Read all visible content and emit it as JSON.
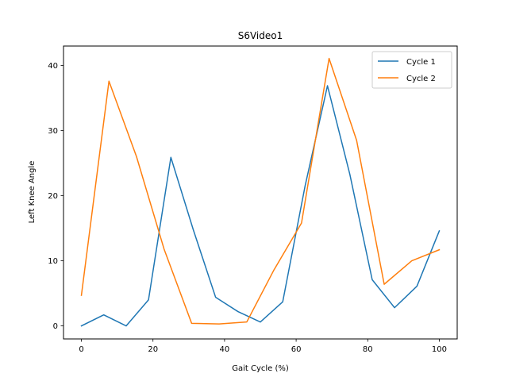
{
  "chart_data": {
    "type": "line",
    "title": "S6Video1",
    "xlabel": "Gait Cycle (%)",
    "ylabel": "Left Knee Angle",
    "xlim": [
      -5,
      105
    ],
    "ylim": [
      -2,
      43
    ],
    "xticks": [
      0,
      20,
      40,
      60,
      80,
      100
    ],
    "yticks": [
      0,
      10,
      20,
      30,
      40
    ],
    "grid": false,
    "legend_position": "top-right",
    "series": [
      {
        "name": "Cycle 1",
        "color": "#1f77b4",
        "x": [
          0,
          6.25,
          12.5,
          18.75,
          25,
          31.25,
          37.5,
          43.75,
          50,
          56.25,
          62.5,
          68.75,
          75,
          81.25,
          87.5,
          93.75,
          100
        ],
        "y": [
          0,
          1.7,
          0.0,
          4.0,
          25.9,
          14.8,
          4.4,
          2.2,
          0.6,
          3.7,
          21.5,
          36.9,
          23.3,
          7.1,
          2.8,
          6.1,
          14.6
        ]
      },
      {
        "name": "Cycle 2",
        "color": "#ff7f0e",
        "x": [
          0,
          7.7,
          15.4,
          23.1,
          30.8,
          38.5,
          46.2,
          53.8,
          61.5,
          69.2,
          76.9,
          84.6,
          92.3,
          100
        ],
        "y": [
          4.7,
          37.6,
          26.0,
          11.8,
          0.4,
          0.3,
          0.6,
          8.6,
          15.8,
          41.1,
          28.5,
          6.4,
          10.0,
          11.7
        ]
      }
    ]
  }
}
